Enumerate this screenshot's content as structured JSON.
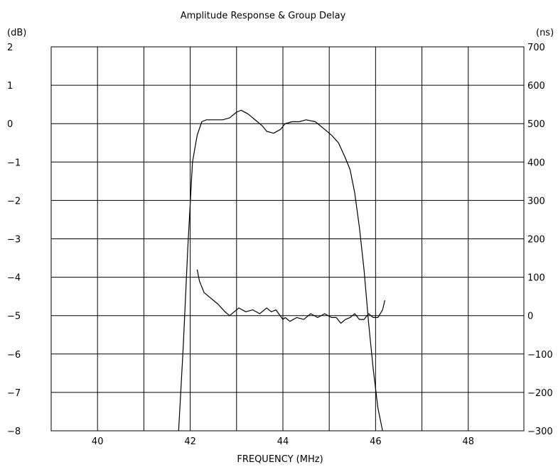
{
  "chart_data": {
    "type": "line",
    "title": "Amplitude Response & Group Delay",
    "xlabel": "FREQUENCY (MHz)",
    "ylabel_left": "(dB)",
    "ylabel_right": "(ns)",
    "xlim": [
      39.0,
      49.2
    ],
    "ylim_left": [
      -8,
      2
    ],
    "ylim_right": [
      -300,
      700
    ],
    "x_ticks": [
      40,
      42,
      44,
      46,
      48
    ],
    "x_grid": [
      39.0,
      40.0,
      41.0,
      42.0,
      43.0,
      44.0,
      45.0,
      46.0,
      47.0,
      48.0,
      49.2
    ],
    "y_left_ticks": [
      2,
      1,
      0,
      -1,
      -2,
      -3,
      -4,
      -5,
      -6,
      -7,
      -8
    ],
    "y_right_ticks": [
      700,
      600,
      500,
      400,
      300,
      200,
      100,
      0,
      -100,
      -200,
      -300
    ],
    "grid": true,
    "series": [
      {
        "axis": "left",
        "color": "#000000",
        "points": [
          [
            41.75,
            -8.0
          ],
          [
            41.85,
            -5.8
          ],
          [
            41.95,
            -3.2
          ],
          [
            42.05,
            -1.0
          ],
          [
            42.15,
            -0.3
          ],
          [
            42.25,
            0.05
          ],
          [
            42.35,
            0.1
          ],
          [
            42.5,
            0.1
          ],
          [
            42.7,
            0.1
          ],
          [
            42.85,
            0.15
          ],
          [
            43.0,
            0.3
          ],
          [
            43.1,
            0.35
          ],
          [
            43.25,
            0.25
          ],
          [
            43.45,
            0.05
          ],
          [
            43.55,
            -0.05
          ],
          [
            43.65,
            -0.2
          ],
          [
            43.8,
            -0.25
          ],
          [
            43.95,
            -0.15
          ],
          [
            44.05,
            0.0
          ],
          [
            44.2,
            0.05
          ],
          [
            44.35,
            0.05
          ],
          [
            44.5,
            0.1
          ],
          [
            44.7,
            0.05
          ],
          [
            44.85,
            -0.1
          ],
          [
            45.05,
            -0.3
          ],
          [
            45.2,
            -0.5
          ],
          [
            45.35,
            -0.9
          ],
          [
            45.45,
            -1.2
          ],
          [
            45.55,
            -1.8
          ],
          [
            45.65,
            -2.7
          ],
          [
            45.75,
            -3.8
          ],
          [
            45.85,
            -5.2
          ],
          [
            45.95,
            -6.4
          ],
          [
            46.05,
            -7.4
          ],
          [
            46.15,
            -8.0
          ]
        ]
      },
      {
        "axis": "right",
        "color": "#000000",
        "points": [
          [
            42.15,
            120
          ],
          [
            42.2,
            90
          ],
          [
            42.3,
            60
          ],
          [
            42.45,
            45
          ],
          [
            42.6,
            30
          ],
          [
            42.75,
            10
          ],
          [
            42.85,
            0
          ],
          [
            42.95,
            10
          ],
          [
            43.05,
            20
          ],
          [
            43.2,
            10
          ],
          [
            43.35,
            15
          ],
          [
            43.5,
            5
          ],
          [
            43.65,
            20
          ],
          [
            43.75,
            10
          ],
          [
            43.85,
            15
          ],
          [
            44.0,
            -10
          ],
          [
            44.05,
            -5
          ],
          [
            44.15,
            -15
          ],
          [
            44.3,
            -5
          ],
          [
            44.45,
            -10
          ],
          [
            44.6,
            5
          ],
          [
            44.75,
            -5
          ],
          [
            44.9,
            5
          ],
          [
            45.05,
            -5
          ],
          [
            45.15,
            -5
          ],
          [
            45.25,
            -20
          ],
          [
            45.35,
            -10
          ],
          [
            45.45,
            -5
          ],
          [
            45.55,
            5
          ],
          [
            45.65,
            -10
          ],
          [
            45.75,
            -10
          ],
          [
            45.85,
            5
          ],
          [
            45.95,
            -5
          ],
          [
            46.05,
            -5
          ],
          [
            46.15,
            15
          ],
          [
            46.2,
            40
          ]
        ]
      }
    ]
  }
}
